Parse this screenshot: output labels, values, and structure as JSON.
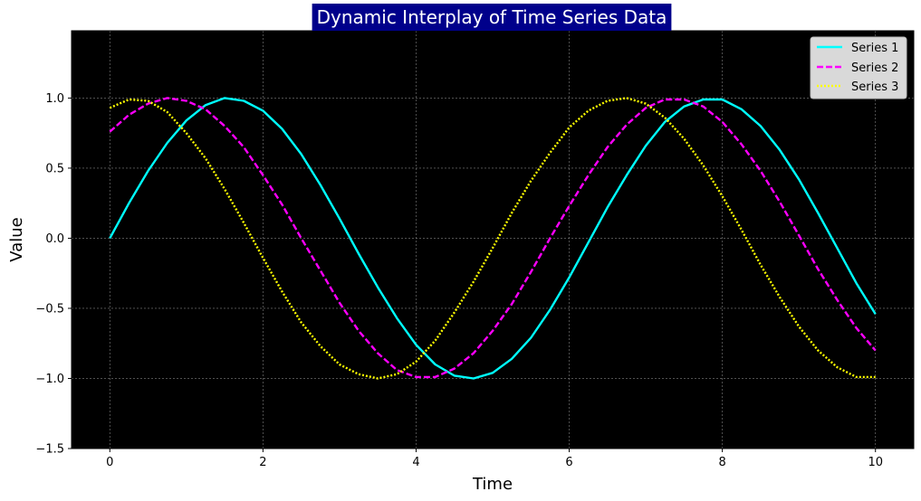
{
  "chart_data": {
    "type": "line",
    "title": "Dynamic Interplay of Time Series Data",
    "xlabel": "Time",
    "ylabel": "Value",
    "xlim": [
      -0.5,
      10.5
    ],
    "ylim": [
      -1.5,
      1.48
    ],
    "xticks": [
      0,
      2,
      4,
      6,
      8,
      10
    ],
    "xtick_labels": [
      "0",
      "2",
      "4",
      "6",
      "8",
      "10"
    ],
    "yticks": [
      -1.5,
      -1.0,
      -0.5,
      0.0,
      0.5,
      1.0
    ],
    "ytick_labels": [
      "−1.5",
      "−1.0",
      "−0.5",
      "0.0",
      "0.5",
      "1.0"
    ],
    "grid": true,
    "legend_position": "top-right",
    "background_color": "#000000",
    "title_box_color": "#00008b",
    "x": [
      0,
      0.25,
      0.5,
      0.75,
      1,
      1.25,
      1.5,
      1.75,
      2,
      2.25,
      2.5,
      2.75,
      3,
      3.25,
      3.5,
      3.75,
      4,
      4.25,
      4.5,
      4.75,
      5,
      5.25,
      5.5,
      5.75,
      6,
      6.25,
      6.5,
      6.75,
      7,
      7.25,
      7.5,
      7.75,
      8,
      8.25,
      8.5,
      8.75,
      9,
      9.25,
      9.5,
      9.75,
      10
    ],
    "series": [
      {
        "name": "Series 1",
        "color": "#00ffff",
        "dash": "solid",
        "values": [
          0.0,
          0.25,
          0.48,
          0.68,
          0.84,
          0.95,
          1.0,
          0.98,
          0.91,
          0.78,
          0.6,
          0.38,
          0.14,
          -0.11,
          -0.35,
          -0.57,
          -0.76,
          -0.9,
          -0.98,
          -1.0,
          -0.96,
          -0.86,
          -0.71,
          -0.51,
          -0.28,
          -0.03,
          0.22,
          0.45,
          0.66,
          0.83,
          0.94,
          0.99,
          0.99,
          0.92,
          0.8,
          0.63,
          0.42,
          0.18,
          -0.07,
          -0.32,
          -0.54
        ]
      },
      {
        "name": "Series 2",
        "color": "#ff00ff",
        "dash": "dashed",
        "values": [
          0.76,
          0.88,
          0.96,
          1.0,
          0.98,
          0.92,
          0.8,
          0.65,
          0.45,
          0.24,
          0.0,
          -0.23,
          -0.46,
          -0.66,
          -0.82,
          -0.94,
          -0.99,
          -0.99,
          -0.93,
          -0.82,
          -0.66,
          -0.47,
          -0.24,
          0.0,
          0.23,
          0.45,
          0.65,
          0.81,
          0.93,
          0.99,
          0.99,
          0.94,
          0.83,
          0.67,
          0.48,
          0.26,
          0.02,
          -0.22,
          -0.44,
          -0.64,
          -0.8
        ]
      },
      {
        "name": "Series 3",
        "color": "#ffff00",
        "dash": "dotted",
        "values": [
          0.93,
          0.99,
          0.98,
          0.9,
          0.75,
          0.57,
          0.35,
          0.11,
          -0.14,
          -0.38,
          -0.6,
          -0.77,
          -0.9,
          -0.97,
          -1.0,
          -0.97,
          -0.88,
          -0.73,
          -0.53,
          -0.31,
          -0.07,
          0.18,
          0.41,
          0.61,
          0.79,
          0.91,
          0.98,
          1.0,
          0.96,
          0.86,
          0.71,
          0.52,
          0.3,
          0.06,
          -0.19,
          -0.42,
          -0.63,
          -0.8,
          -0.92,
          -0.99,
          -0.99
        ]
      }
    ]
  }
}
